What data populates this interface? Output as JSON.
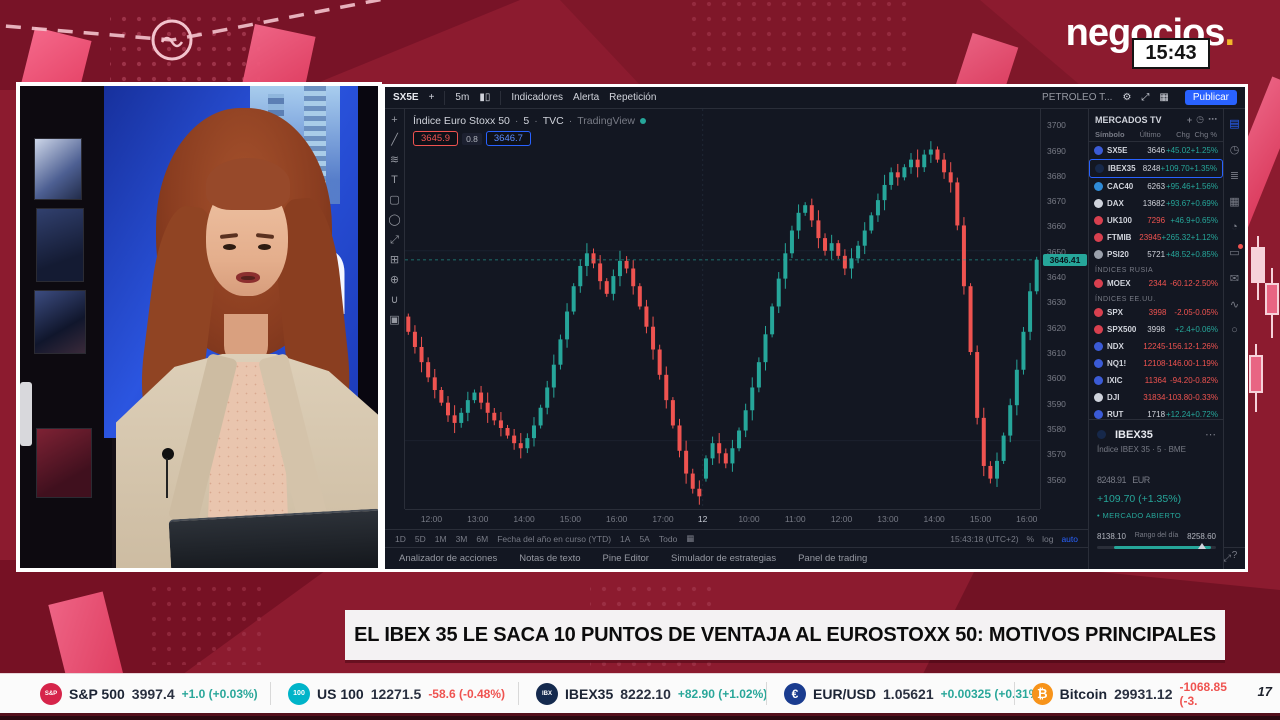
{
  "brand": {
    "logo_text": "negocios",
    "logo_dot": ".",
    "clock": "15:43"
  },
  "headline": {
    "text": "EL IBEX 35 LE SACA 10 PUNTOS DE VENTAJA AL EUROSTOXX 50: MOTIVOS PRINCIPALES"
  },
  "tradingview": {
    "topbar": {
      "symbol": "SX5E",
      "add_label": "+",
      "interval": "5m",
      "candles_icon": "▮▯",
      "indicators_label": "Indicadores",
      "alert_label": "Alerta",
      "replay_label": "Repetición",
      "layout_name": "PETROLEO T...",
      "publish_label": "Publicar"
    },
    "legend": {
      "title": "Índice Euro Stoxx 50",
      "sep1": "·",
      "interval": "5",
      "sep2": "·",
      "exchange": "TVC",
      "sep3": "·",
      "brand": "TradingView",
      "sell_price": "3645.9",
      "spread": "0.8",
      "buy_price": "3646.7"
    },
    "drawing_tools": [
      {
        "name": "cursor-icon",
        "glyph": "+"
      },
      {
        "name": "trendline-icon",
        "glyph": "╱"
      },
      {
        "name": "fib-icon",
        "glyph": "≋"
      },
      {
        "name": "text-tool-icon",
        "glyph": "T"
      },
      {
        "name": "shapes-icon",
        "glyph": "▢"
      },
      {
        "name": "ellipse-icon",
        "glyph": "◯"
      },
      {
        "name": "arrow-tool-icon",
        "glyph": "⤢"
      },
      {
        "name": "measure-icon",
        "glyph": "⊞"
      },
      {
        "name": "zoom-tool-icon",
        "glyph": "⊕"
      },
      {
        "name": "magnet-icon",
        "glyph": "∪"
      },
      {
        "name": "lock-icon",
        "glyph": "▣"
      }
    ],
    "panel_icons": [
      {
        "name": "watchlist-icon",
        "glyph": "▤",
        "active": true,
        "dot": false
      },
      {
        "name": "alerts-icon",
        "glyph": "◷",
        "active": false,
        "dot": false
      },
      {
        "name": "news-icon",
        "glyph": "≣",
        "active": false,
        "dot": false
      },
      {
        "name": "calendar-icon",
        "glyph": "▦",
        "active": false,
        "dot": false
      },
      {
        "name": "ideas-icon",
        "glyph": "◔",
        "active": false,
        "dot": false
      },
      {
        "name": "chat-icon",
        "glyph": "▭",
        "active": false,
        "dot": true
      },
      {
        "name": "inbox-icon",
        "glyph": "✉",
        "active": false,
        "dot": false
      },
      {
        "name": "hotlist-icon",
        "glyph": "∿",
        "active": false,
        "dot": false
      },
      {
        "name": "object-tree-icon",
        "glyph": "○",
        "active": false,
        "dot": false
      }
    ],
    "help_label": "?",
    "time_axis": [
      "12:00",
      "13:00",
      "14:00",
      "15:00",
      "16:00",
      "17:00",
      "12",
      "10:00",
      "11:00",
      "12:00",
      "13:00",
      "14:00",
      "15:00",
      "16:00"
    ],
    "ranges": [
      "1D",
      "5D",
      "1M",
      "3M",
      "6M",
      "Fecha del año en curso (YTD)",
      "1A",
      "5A",
      "Todo"
    ],
    "calendar_icon": "▦",
    "clock_utc": "15:43:18 (UTC+2)",
    "scales": {
      "percent": "%",
      "log": "log",
      "auto": "auto"
    },
    "tabs": [
      "Analizador de acciones",
      "Notas de texto",
      "Pine Editor",
      "Simulador de estrategias",
      "Panel de trading"
    ],
    "tabs_icons": [
      "▴",
      "⤢"
    ],
    "watchlist": {
      "title": "MERCADOS TV",
      "head_icons": [
        "+",
        "◷",
        "⋯"
      ],
      "columns": [
        "Símbolo",
        "Último",
        "Chg",
        "Chg %"
      ],
      "sections": [
        {
          "label": "",
          "rows": [
            {
              "symbol": "SX5E",
              "icon": "#3b5bd6",
              "last": "3646",
              "last_dir": "up",
              "chg": "+45.02",
              "pct": "+1.25%",
              "dir": "up",
              "selected": false
            },
            {
              "symbol": "IBEX35",
              "icon": "#16284a",
              "last": "8248",
              "last_dir": "up",
              "chg": "+109.70",
              "pct": "+1.35%",
              "dir": "up",
              "selected": true
            },
            {
              "symbol": "CAC40",
              "icon": "#2f8bd8",
              "last": "6263",
              "last_dir": "up",
              "chg": "+95.46",
              "pct": "+1.56%",
              "dir": "up",
              "selected": false
            },
            {
              "symbol": "DAX",
              "icon": "#cfd3dc",
              "last": "13682",
              "last_dir": "up",
              "chg": "+93.67",
              "pct": "+0.69%",
              "dir": "up",
              "selected": false
            },
            {
              "symbol": "UK100",
              "icon": "#d8404f",
              "last": "7296",
              "last_dir": "down",
              "chg": "+46.9",
              "pct": "+0.65%",
              "dir": "up",
              "selected": false
            },
            {
              "symbol": "FTMIB",
              "icon": "#d8404f",
              "last": "23945",
              "last_dir": "down",
              "chg": "+265.32",
              "pct": "+1.12%",
              "dir": "up",
              "selected": false
            },
            {
              "symbol": "PSI20",
              "icon": "#9aa0ab",
              "last": "5721",
              "last_dir": "up",
              "chg": "+48.52",
              "pct": "+0.85%",
              "dir": "up",
              "selected": false
            }
          ]
        },
        {
          "label": "ÍNDICES RUSIA",
          "rows": [
            {
              "symbol": "MOEX",
              "icon": "#d8404f",
              "last": "2344",
              "last_dir": "down",
              "chg": "-60.12",
              "pct": "-2.50%",
              "dir": "down",
              "selected": false
            }
          ]
        },
        {
          "label": "ÍNDICES EE.UU.",
          "rows": [
            {
              "symbol": "SPX",
              "icon": "#d8404f",
              "last": "3998",
              "last_dir": "down",
              "chg": "-2.05",
              "pct": "-0.05%",
              "dir": "down",
              "selected": false
            },
            {
              "symbol": "SPX500",
              "icon": "#d8404f",
              "last": "3998",
              "last_dir": "up",
              "chg": "+2.4",
              "pct": "+0.06%",
              "dir": "up",
              "selected": false
            },
            {
              "symbol": "NDX",
              "icon": "#3b5bd6",
              "last": "12245",
              "last_dir": "down",
              "chg": "-156.12",
              "pct": "-1.26%",
              "dir": "down",
              "selected": false
            },
            {
              "symbol": "NQ1!",
              "icon": "#3b5bd6",
              "last": "12108",
              "last_dir": "down",
              "chg": "-146.00",
              "pct": "-1.19%",
              "dir": "down",
              "selected": false
            },
            {
              "symbol": "IXIC",
              "icon": "#3b5bd6",
              "last": "11364",
              "last_dir": "down",
              "chg": "-94.20",
              "pct": "-0.82%",
              "dir": "down",
              "selected": false
            },
            {
              "symbol": "DJI",
              "icon": "#cfd3dc",
              "last": "31834",
              "last_dir": "down",
              "chg": "-103.80",
              "pct": "-0.33%",
              "dir": "down",
              "selected": false
            },
            {
              "symbol": "RUT",
              "icon": "#3b5bd6",
              "last": "1718",
              "last_dir": "up",
              "chg": "+12.24",
              "pct": "+0.72%",
              "dir": "up",
              "selected": false
            }
          ]
        }
      ]
    },
    "detail": {
      "symbol": "IBEX35",
      "menu_icon": "⋯",
      "subtitle": "Índice IBEX 35 · 5 · BME",
      "price": "8248.91",
      "currency": "EUR",
      "change": "+109.70 (+1.35%)",
      "status": "• MERCADO ABIERTO",
      "range_low": "8138.10",
      "range_label": "Rango del día",
      "range_high": "8258.60"
    }
  },
  "chart_data": {
    "type": "candlestick",
    "title": "Índice Euro Stoxx 50",
    "interval": "5",
    "exchange": "TVC",
    "price_axis_ticks": [
      3700,
      3690,
      3680,
      3670,
      3660,
      3650,
      3640,
      3630,
      3620,
      3610,
      3600,
      3590,
      3580,
      3570,
      3560
    ],
    "price_min": 3548,
    "price_max": 3706,
    "first_open": 3624,
    "gap_index": 45,
    "gap_open": 3560,
    "closes": [
      3618,
      3612,
      3606,
      3600,
      3595,
      3590,
      3585,
      3582,
      3586,
      3591,
      3594,
      3590,
      3586,
      3583,
      3580,
      3577,
      3574,
      3572,
      3576,
      3581,
      3588,
      3596,
      3605,
      3615,
      3626,
      3636,
      3644,
      3649,
      3645,
      3638,
      3633,
      3640,
      3646,
      3643,
      3636,
      3628,
      3620,
      3611,
      3601,
      3591,
      3581,
      3571,
      3562,
      3556,
      3553,
      3568,
      3574,
      3570,
      3566,
      3572,
      3579,
      3587,
      3596,
      3606,
      3617,
      3628,
      3639,
      3649,
      3658,
      3665,
      3668,
      3662,
      3655,
      3650,
      3653,
      3648,
      3643,
      3647,
      3652,
      3658,
      3664,
      3670,
      3676,
      3681,
      3679,
      3683,
      3686,
      3683,
      3688,
      3690,
      3686,
      3681,
      3677,
      3660,
      3636,
      3610,
      3584,
      3565,
      3560,
      3567,
      3577,
      3589,
      3603,
      3618,
      3634,
      3646.41
    ],
    "current_price": "3646.41",
    "gridline_prices": [
      3650,
      3575
    ],
    "up_color": "#26a69a",
    "down_color": "#ef5350",
    "legend_position": "top-left",
    "grid": "minimal"
  },
  "ticker": {
    "items": [
      {
        "name": "S&P 500",
        "value": "3997.4",
        "change": "+1.0 (+0.03%)",
        "direction": "up",
        "logo_bg": "#d6244a",
        "logo_glyph": "S&P",
        "glyph_size": 6
      },
      {
        "name": "US 100",
        "value": "12271.5",
        "change": "-58.6 (-0.48%)",
        "direction": "down",
        "logo_bg": "#00b4c9",
        "logo_glyph": "100",
        "glyph_size": 7
      },
      {
        "name": "IBEX35",
        "value": "8222.10",
        "change": "+82.90 (+1.02%)",
        "direction": "up",
        "logo_bg": "#152a4e",
        "logo_glyph": "IBX",
        "glyph_size": 6
      },
      {
        "name": "EUR/USD",
        "value": "1.05621",
        "change": "+0.00325 (+0.31%)",
        "direction": "up",
        "logo_bg": "#1a3c8f",
        "logo_glyph": "€",
        "glyph_size": 12
      },
      {
        "name": "Bitcoin",
        "value": "29931.12",
        "change": "-1068.85 (-3.",
        "direction": "down",
        "logo_bg": "#f7931a",
        "logo_glyph": "₿",
        "glyph_size": 13
      }
    ],
    "tv_mark": "17"
  }
}
